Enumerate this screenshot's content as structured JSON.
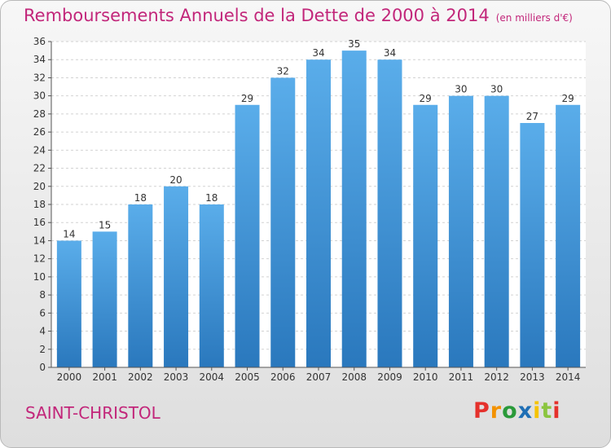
{
  "title": "Remboursements Annuels de la Dette de 2000 à 2014",
  "unit": "(en milliers d'€)",
  "commune": "SAINT-CHRISTOL",
  "logo": {
    "letters": [
      "P",
      "r",
      "o",
      "x",
      "i",
      "t",
      "i"
    ],
    "colors": [
      "#e5312c",
      "#f39200",
      "#2a9a3a",
      "#1f6fb5",
      "#f5c300",
      "#8bc53f",
      "#e5312c"
    ]
  },
  "chart_data": {
    "type": "bar",
    "categories": [
      "2000",
      "2001",
      "2002",
      "2003",
      "2004",
      "2005",
      "2006",
      "2007",
      "2008",
      "2009",
      "2010",
      "2011",
      "2012",
      "2013",
      "2014"
    ],
    "values": [
      14,
      15,
      18,
      20,
      18,
      29,
      32,
      34,
      35,
      34,
      29,
      30,
      30,
      27,
      29
    ],
    "title": "Remboursements Annuels de la Dette de 2000 à 2014",
    "ylim": [
      0,
      36
    ],
    "yticks": [
      0,
      2,
      4,
      6,
      8,
      10,
      12,
      14,
      16,
      18,
      20,
      22,
      24,
      26,
      28,
      30,
      32,
      34,
      36
    ],
    "grid": true,
    "bar_color": "#3e93d6"
  }
}
